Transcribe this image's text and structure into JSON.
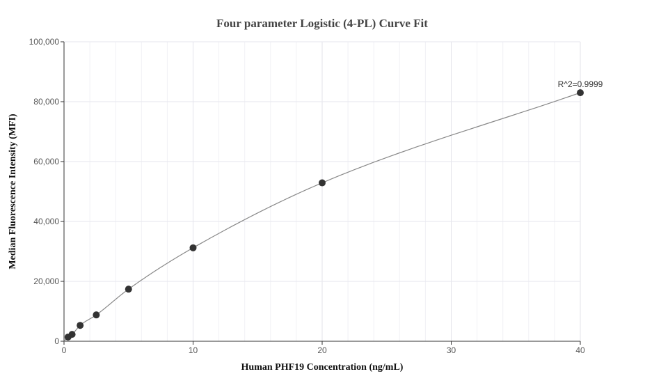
{
  "chart_data": {
    "type": "scatter",
    "title": "Four parameter Logistic (4-PL) Curve Fit",
    "xlabel": "Human PHF19 Concentration (ng/mL)",
    "ylabel": "Median Fluorescence Intensity (MFI)",
    "xlim": [
      0,
      40
    ],
    "ylim": [
      0,
      100000
    ],
    "x_ticks": [
      0,
      10,
      20,
      30,
      40
    ],
    "x_tick_labels": [
      "0",
      "10",
      "20",
      "30",
      "40"
    ],
    "y_ticks": [
      0,
      20000,
      40000,
      60000,
      80000,
      100000
    ],
    "y_tick_labels": [
      "0",
      "20,000",
      "40,000",
      "60,000",
      "80,000",
      "100,000"
    ],
    "grid": true,
    "points": [
      {
        "x": 0.3125,
        "y": 1400
      },
      {
        "x": 0.625,
        "y": 2300
      },
      {
        "x": 1.25,
        "y": 5300
      },
      {
        "x": 2.5,
        "y": 8800
      },
      {
        "x": 5,
        "y": 17400
      },
      {
        "x": 10,
        "y": 31200
      },
      {
        "x": 20,
        "y": 52900
      },
      {
        "x": 40,
        "y": 83000
      }
    ],
    "fit_curve": {
      "type": "4PL",
      "color": "#888888"
    },
    "annotations": [
      {
        "text": "R^2=0.9999",
        "x": 40,
        "y": 83000
      }
    ],
    "colors": {
      "points": "#333333",
      "grid": "#e6e6ee",
      "axis": "#333333"
    }
  }
}
